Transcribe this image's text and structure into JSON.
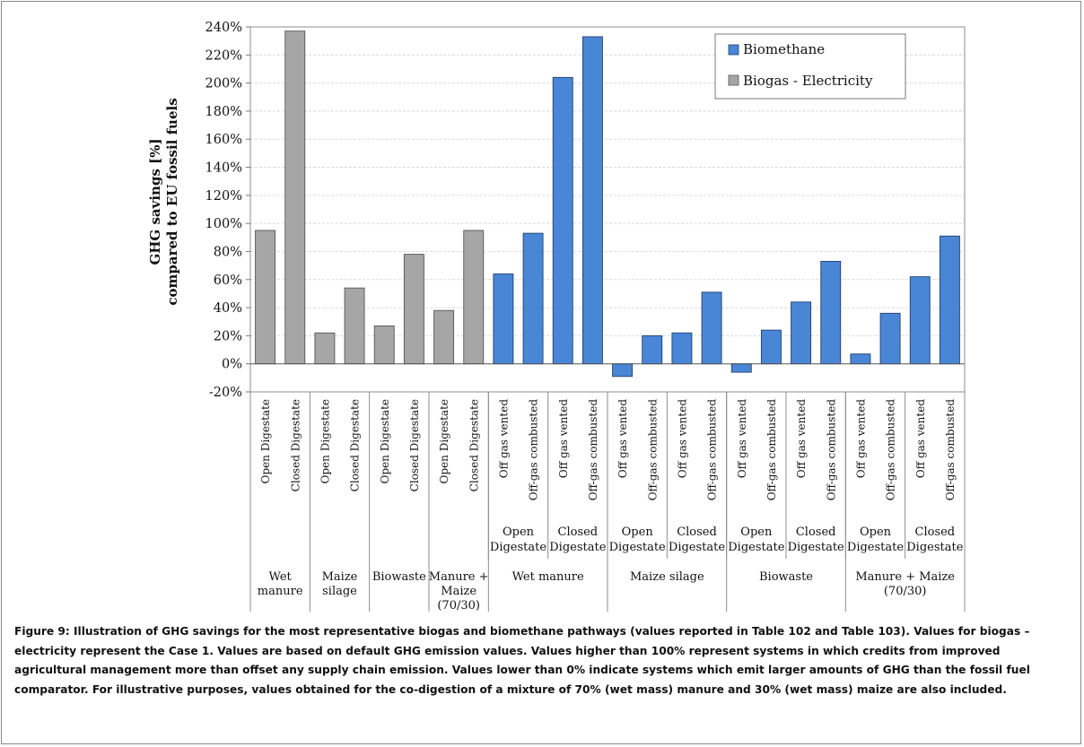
{
  "chart_data": {
    "type": "bar",
    "ylabel_line1": "GHG savings [%]",
    "ylabel_line2": "compared to EU fossil fuels",
    "ylim": [
      -20,
      240
    ],
    "ytick_step": 20,
    "yticks": [
      "-20%",
      "0%",
      "20%",
      "40%",
      "60%",
      "80%",
      "100%",
      "120%",
      "140%",
      "160%",
      "180%",
      "200%",
      "220%",
      "240%"
    ],
    "grid": true,
    "legend_position": "top-right",
    "colors": {
      "Biomethane": "#4a86d6",
      "Biogas - Electricity": "#a6a6a6"
    },
    "series": [
      {
        "name": "Biomethane"
      },
      {
        "name": "Biogas - Electricity"
      }
    ],
    "categories": [
      "Open Digestate",
      "Closed Digestate",
      "Open Digestate",
      "Closed Digestate",
      "Open Digestate",
      "Closed Digestate",
      "Open Digestate",
      "Closed Digestate",
      "Off gas vented",
      "Off-gas combusted",
      "Off gas vented",
      "Off-gas combusted",
      "Off gas vented",
      "Off-gas combusted",
      "Off gas vented",
      "Off-gas combusted",
      "Off gas vented",
      "Off-gas combusted",
      "Off gas vented",
      "Off-gas combusted",
      "Off gas vented",
      "Off-gas combusted",
      "Off gas vented",
      "Off-gas combusted"
    ],
    "values": [
      95,
      237,
      22,
      54,
      27,
      78,
      38,
      95,
      64,
      93,
      204,
      233,
      -9,
      20,
      22,
      51,
      -6,
      24,
      44,
      73,
      7,
      36,
      62,
      91
    ],
    "bar_series": [
      "Biogas - Electricity",
      "Biogas - Electricity",
      "Biogas - Electricity",
      "Biogas - Electricity",
      "Biogas - Electricity",
      "Biogas - Electricity",
      "Biogas - Electricity",
      "Biogas - Electricity",
      "Biomethane",
      "Biomethane",
      "Biomethane",
      "Biomethane",
      "Biomethane",
      "Biomethane",
      "Biomethane",
      "Biomethane",
      "Biomethane",
      "Biomethane",
      "Biomethane",
      "Biomethane",
      "Biomethane",
      "Biomethane",
      "Biomethane",
      "Biomethane"
    ],
    "digestate_groups": [
      {
        "label": [
          "Open",
          "Digestate"
        ],
        "start": 8,
        "end": 9
      },
      {
        "label": [
          "Closed",
          "Digestate"
        ],
        "start": 10,
        "end": 11
      },
      {
        "label": [
          "Open",
          "Digestate"
        ],
        "start": 12,
        "end": 13
      },
      {
        "label": [
          "Closed",
          "Digestate"
        ],
        "start": 14,
        "end": 15
      },
      {
        "label": [
          "Open",
          "Digestate"
        ],
        "start": 16,
        "end": 17
      },
      {
        "label": [
          "Closed",
          "Digestate"
        ],
        "start": 18,
        "end": 19
      },
      {
        "label": [
          "Open",
          "Digestate"
        ],
        "start": 20,
        "end": 21
      },
      {
        "label": [
          "Closed",
          "Digestate"
        ],
        "start": 22,
        "end": 23
      }
    ],
    "feedstock_groups": [
      {
        "label": [
          "Wet",
          "manure"
        ],
        "start": 0,
        "end": 1
      },
      {
        "label": [
          "Maize",
          "silage"
        ],
        "start": 2,
        "end": 3
      },
      {
        "label": [
          "Biowaste"
        ],
        "start": 4,
        "end": 5
      },
      {
        "label": [
          "Manure +",
          "Maize",
          "(70/30)"
        ],
        "start": 6,
        "end": 7
      },
      {
        "label": [
          "Wet manure"
        ],
        "start": 8,
        "end": 11
      },
      {
        "label": [
          "Maize silage"
        ],
        "start": 12,
        "end": 15
      },
      {
        "label": [
          "Biowaste"
        ],
        "start": 16,
        "end": 19
      },
      {
        "label": [
          "Manure + Maize",
          "(70/30)"
        ],
        "start": 20,
        "end": 23
      }
    ]
  },
  "caption": "Figure 9: Illustration of GHG savings for the most representative biogas and biomethane pathways (values reported in Table 102 and Table 103). Values for biogas – electricity represent the Case 1. Values are based on default GHG emission values. Values higher than 100% represent systems in which credits from improved agricultural management more than offset any supply chain emission. Values lower than 0% indicate systems which emit larger amounts of GHG than the fossil fuel comparator. For illustrative purposes, values obtained for the co-digestion of a mixture of 70% (wet mass) manure and 30% (wet mass) maize are also included."
}
